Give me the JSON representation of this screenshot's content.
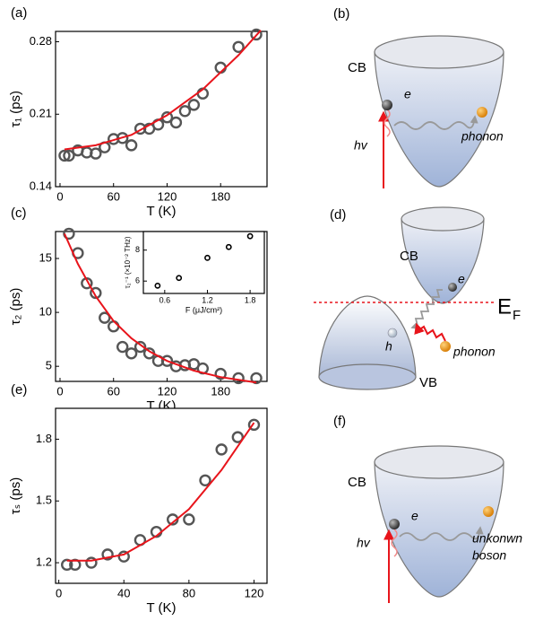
{
  "chart_data": [
    {
      "type": "scatter",
      "panel_label": "(a)",
      "ylabel": "τ₁ (ps)",
      "xlabel": "T (K)",
      "xlim": [
        -5,
        232
      ],
      "xticks": [
        0,
        60,
        120,
        180
      ],
      "ylim": [
        0.14,
        0.29
      ],
      "yticks": [
        0.14,
        0.21,
        0.28
      ],
      "series": [
        {
          "mode": "markers",
          "color": "#555555",
          "x": [
            5,
            10,
            20,
            30,
            40,
            50,
            60,
            70,
            80,
            90,
            100,
            110,
            120,
            130,
            140,
            150,
            160,
            180,
            200,
            220
          ],
          "values": [
            0.17,
            0.17,
            0.175,
            0.173,
            0.172,
            0.178,
            0.186,
            0.187,
            0.18,
            0.196,
            0.196,
            0.2,
            0.207,
            0.202,
            0.213,
            0.219,
            0.23,
            0.255,
            0.275,
            0.287
          ]
        },
        {
          "mode": "line",
          "color": "#e8141b",
          "x": [
            5,
            40,
            80,
            120,
            160,
            200,
            225
          ],
          "values": [
            0.176,
            0.18,
            0.19,
            0.209,
            0.234,
            0.267,
            0.291
          ]
        }
      ]
    },
    {
      "type": "scatter",
      "panel_label": "(c)",
      "ylabel": "τ₂ (ps)",
      "xlabel": "T (K)",
      "xlim": [
        -5,
        232
      ],
      "xticks": [
        0,
        60,
        120,
        180
      ],
      "ylim": [
        3.6,
        17.5
      ],
      "yticks": [
        5,
        10,
        15
      ],
      "series": [
        {
          "mode": "markers",
          "color": "#555555",
          "x": [
            10,
            20,
            30,
            40,
            50,
            60,
            70,
            80,
            90,
            100,
            110,
            120,
            130,
            140,
            150,
            160,
            180,
            200,
            220
          ],
          "values": [
            17.3,
            15.5,
            12.7,
            11.8,
            9.5,
            8.7,
            6.8,
            6.2,
            6.8,
            6.2,
            5.5,
            5.5,
            5.0,
            5.1,
            5.2,
            4.8,
            4.3,
            3.9,
            3.9
          ]
        },
        {
          "mode": "line",
          "color": "#e8141b",
          "x": [
            5,
            20,
            40,
            60,
            80,
            100,
            120,
            150,
            180,
            220
          ],
          "values": [
            17.3,
            14.5,
            11.5,
            9.2,
            7.6,
            6.4,
            5.5,
            4.6,
            4.0,
            3.5
          ]
        }
      ]
    },
    {
      "type": "scatter",
      "panel_label": "(e)",
      "ylabel": "τₛ (ps)",
      "xlabel": "T (K)",
      "xlim": [
        -2,
        128
      ],
      "xticks": [
        0,
        40,
        80,
        120
      ],
      "ylim": [
        1.1,
        1.95
      ],
      "yticks": [
        1.2,
        1.5,
        1.8
      ],
      "series": [
        {
          "mode": "markers",
          "color": "#555555",
          "x": [
            5,
            10,
            20,
            30,
            40,
            50,
            60,
            70,
            80,
            90,
            100,
            110,
            120
          ],
          "values": [
            1.19,
            1.19,
            1.2,
            1.24,
            1.23,
            1.31,
            1.35,
            1.41,
            1.41,
            1.6,
            1.75,
            1.81,
            1.87
          ]
        },
        {
          "mode": "line",
          "color": "#e8141b",
          "x": [
            5,
            20,
            40,
            60,
            80,
            100,
            120
          ],
          "values": [
            1.21,
            1.21,
            1.24,
            1.33,
            1.46,
            1.65,
            1.88
          ]
        }
      ]
    },
    {
      "type": "scatter",
      "inset": true,
      "ylabel": "τ₂⁻¹ (×10⁻² THz)",
      "xlabel": "F (μJ/cm²)",
      "xlim": [
        0.3,
        2.0
      ],
      "xticks": [
        0.6,
        1.2,
        1.8
      ],
      "ylim": [
        5.2,
        9.2
      ],
      "yticks": [
        6,
        8
      ],
      "series": [
        {
          "mode": "markers",
          "color": "#000000",
          "x": [
            0.5,
            0.8,
            1.2,
            1.5,
            1.8
          ],
          "values": [
            5.7,
            6.2,
            7.5,
            8.2,
            8.9
          ]
        }
      ]
    }
  ],
  "diagrams": [
    {
      "label": "(b)",
      "band": "CB",
      "carrier": "e",
      "photon": "hv",
      "boson": "phonon"
    },
    {
      "label": "(d)",
      "upper_band": "CB",
      "lower_band": "VB",
      "electron": "e",
      "hole": "h",
      "fermi": "E",
      "fermi_sub": "F",
      "boson": "phonon"
    },
    {
      "label": "(f)",
      "band": "CB",
      "carrier": "e",
      "photon": "hv",
      "boson_line1": "unkonwn",
      "boson_line2": "boson"
    }
  ]
}
